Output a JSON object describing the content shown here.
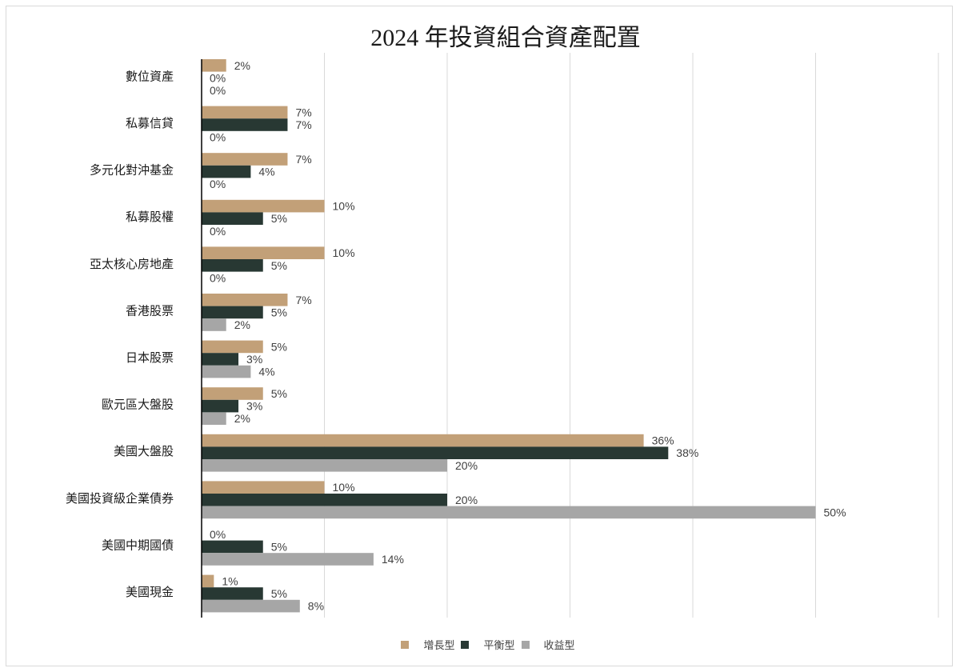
{
  "chart_data": {
    "type": "bar",
    "orientation": "horizontal",
    "title": "2024 年投資組合資產配置",
    "categories": [
      "數位資產",
      "私募信貸",
      "多元化對沖基金",
      "私募股權",
      "亞太核心房地產",
      "香港股票",
      "日本股票",
      "歐元區大盤股",
      "美國大盤股",
      "美國投資級企業債券",
      "美國中期國債",
      "美國現金"
    ],
    "series": [
      {
        "name": "增長型",
        "color": "#c2a078",
        "values": [
          2,
          7,
          7,
          10,
          10,
          7,
          5,
          5,
          36,
          10,
          0,
          1
        ]
      },
      {
        "name": "平衡型",
        "color": "#283833",
        "values": [
          0,
          7,
          4,
          5,
          5,
          5,
          3,
          3,
          38,
          20,
          5,
          5
        ]
      },
      {
        "name": "收益型",
        "color": "#a6a6a6",
        "values": [
          0,
          0,
          0,
          0,
          0,
          2,
          4,
          2,
          20,
          50,
          14,
          8
        ]
      }
    ],
    "value_suffix": "%",
    "xlim": [
      0,
      60
    ],
    "grid": "vertical",
    "legend_position": "bottom"
  }
}
